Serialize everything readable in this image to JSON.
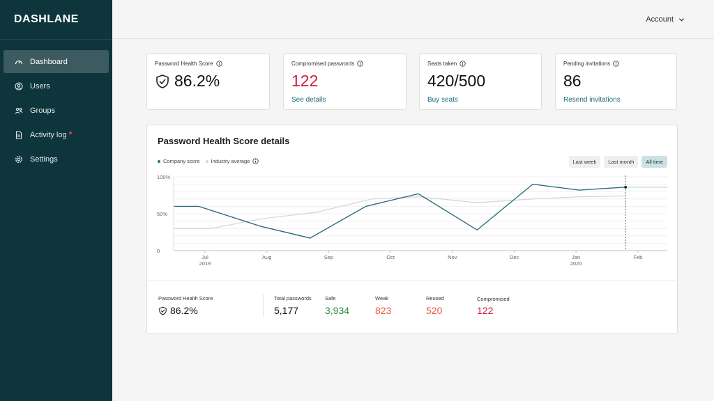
{
  "sidebar": {
    "logo": "DASHLANE",
    "items": [
      {
        "label": "Dashboard",
        "icon": "gauge-icon"
      },
      {
        "label": "Users",
        "icon": "user-icon"
      },
      {
        "label": "Groups",
        "icon": "group-icon"
      },
      {
        "label": "Activity log",
        "icon": "document-icon"
      },
      {
        "label": "Settings",
        "icon": "gear-icon"
      }
    ]
  },
  "header": {
    "account_label": "Account"
  },
  "cards": {
    "health": {
      "label": "Password Health Score",
      "value": "86.2%"
    },
    "compromised": {
      "label": "Compromised passwords",
      "value": "122",
      "link": "See details"
    },
    "seats": {
      "label": "Seats taken",
      "value": "420/500",
      "link": "Buy seats"
    },
    "invites": {
      "label": "Pending invitations",
      "value": "86",
      "link": "Resend invitations"
    }
  },
  "panel": {
    "title": "Password Health Score details",
    "legend": {
      "company": "Company score",
      "industry": "Industry average"
    },
    "filters": [
      "Last week",
      "Last month",
      "All time"
    ],
    "summary": {
      "health_label": "Password Health Score",
      "health_value": "86.2%",
      "total_label": "Total passwords",
      "total_value": "5,177",
      "safe_label": "Safe",
      "safe_value": "3,934",
      "weak_label": "Weak",
      "weak_value": "823",
      "reused_label": "Reused",
      "reused_value": "520",
      "compromised_label": "Compromised",
      "compromised_value": "122"
    }
  },
  "colors": {
    "company": "#2c6f7c",
    "industry": "#d4d4d4",
    "sidebar": "#0e353c"
  },
  "chart_data": {
    "type": "line",
    "ylim": [
      0,
      100
    ],
    "yticks": [
      "100%",
      "50%",
      "0"
    ],
    "xticks": [
      {
        "label": "Jul",
        "sub": "2019"
      },
      {
        "label": "Aug",
        "sub": ""
      },
      {
        "label": "Sep",
        "sub": ""
      },
      {
        "label": "Oct",
        "sub": ""
      },
      {
        "label": "Nov",
        "sub": ""
      },
      {
        "label": "Dec",
        "sub": ""
      },
      {
        "label": "Jan",
        "sub": "2020"
      },
      {
        "label": "Feb",
        "sub": ""
      }
    ],
    "series": [
      {
        "name": "Company score",
        "x": [
          -0.5,
          -0.1,
          0.9,
          1.7,
          2.6,
          3.45,
          4.4,
          5.3,
          6.05,
          6.8
        ],
        "y": [
          60,
          60,
          33,
          17,
          60,
          77,
          28,
          90,
          82,
          86
        ]
      },
      {
        "name": "Industry average",
        "x": [
          -0.5,
          0.1,
          0.9,
          1.8,
          2.7,
          3.45,
          4.4,
          5.3,
          6.05,
          6.8
        ],
        "y": [
          30,
          30,
          43,
          52,
          70,
          73,
          65,
          70,
          73,
          74
        ]
      }
    ],
    "marker_x": 6.8
  }
}
